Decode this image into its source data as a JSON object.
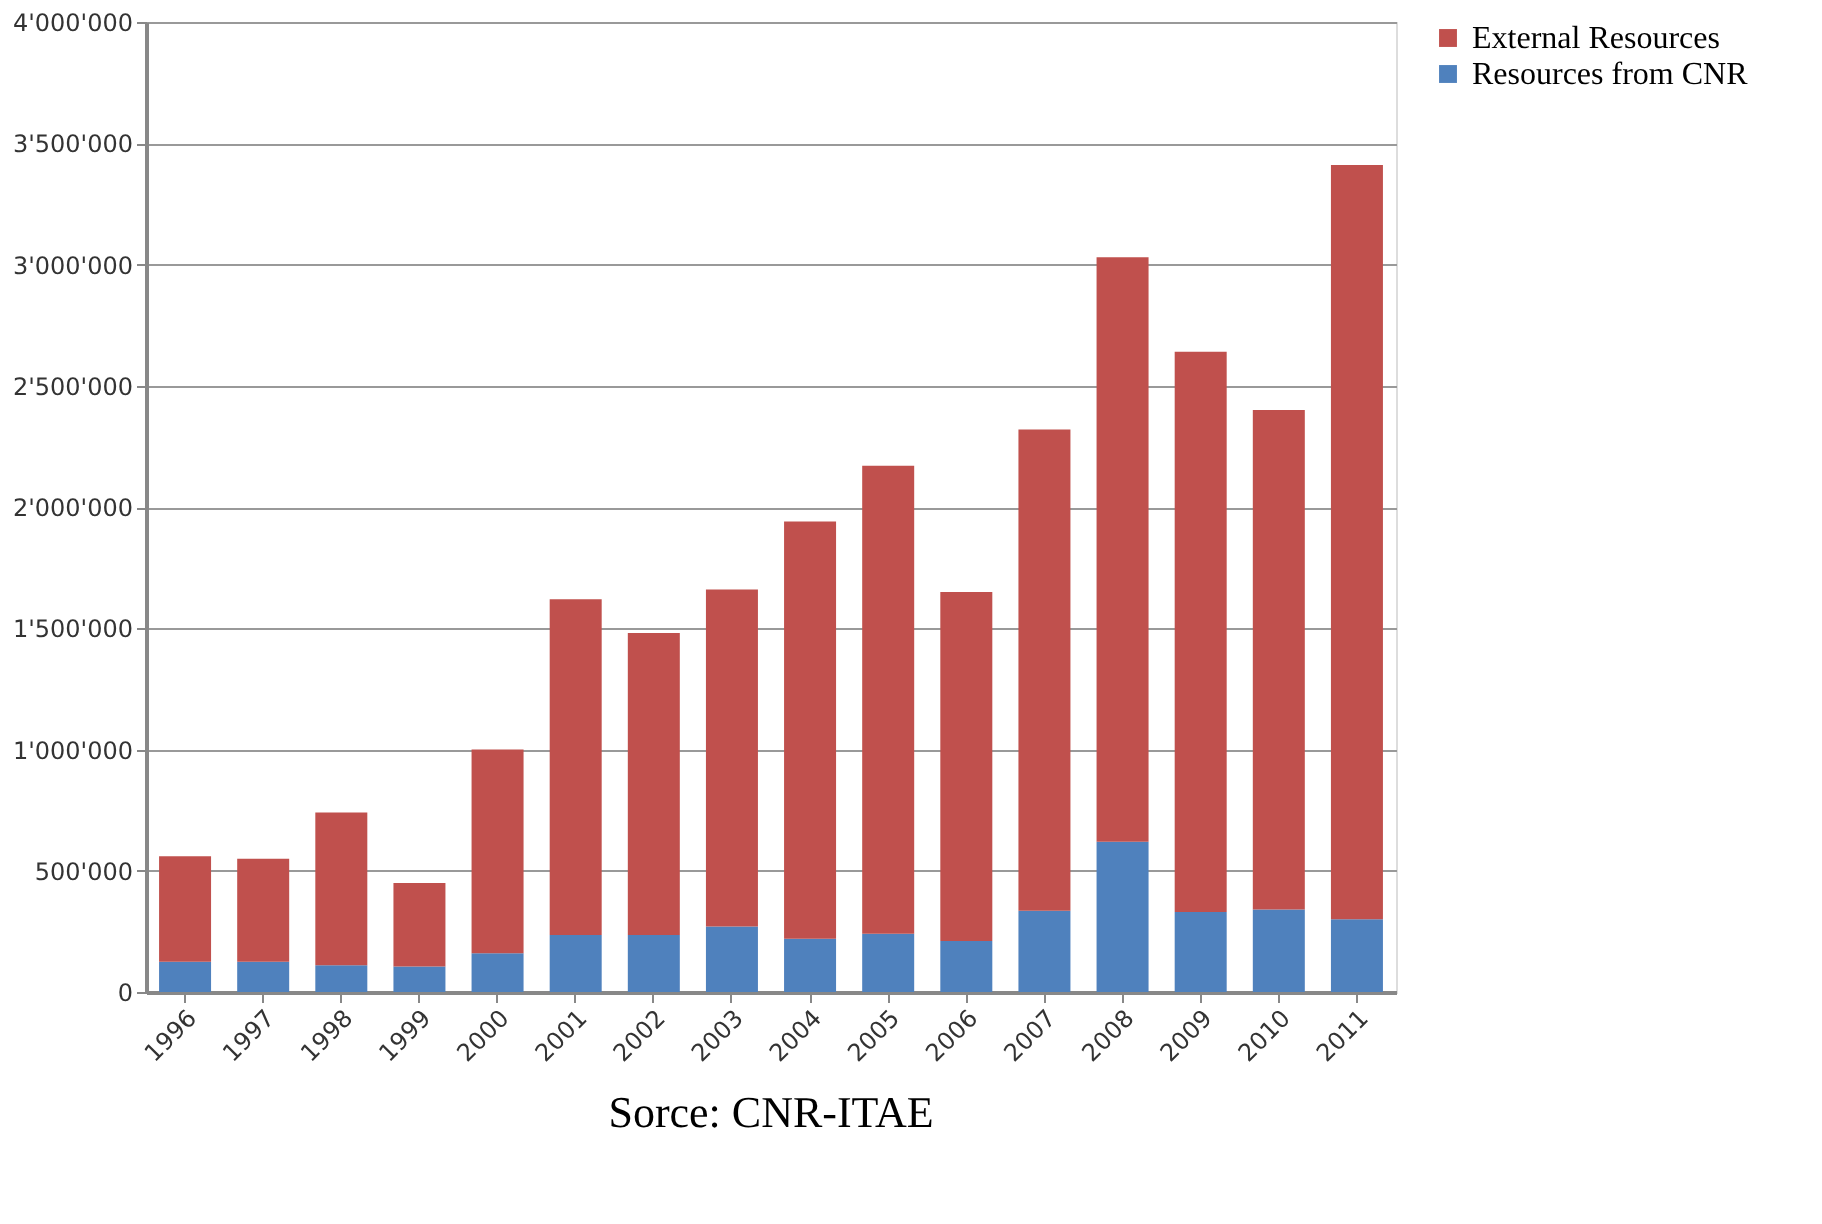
{
  "chart_data": {
    "type": "bar",
    "stacked": true,
    "categories": [
      "1996",
      "1997",
      "1998",
      "1999",
      "2000",
      "2001",
      "2002",
      "2003",
      "2004",
      "2005",
      "2006",
      "2007",
      "2008",
      "2009",
      "2010",
      "2011"
    ],
    "series": [
      {
        "name": "Resources from CNR",
        "color": "#4f81bd",
        "values": [
          125000,
          125000,
          110000,
          105000,
          160000,
          235000,
          235000,
          270000,
          220000,
          240000,
          210000,
          335000,
          620000,
          330000,
          340000,
          300000
        ]
      },
      {
        "name": "External  Resources",
        "color": "#c0504d",
        "values": [
          435000,
          425000,
          630000,
          345000,
          840000,
          1385000,
          1245000,
          1390000,
          1720000,
          1930000,
          1440000,
          1985000,
          2410000,
          2310000,
          2060000,
          3110000
        ]
      }
    ],
    "ylim": [
      0,
      4000000
    ],
    "yticks": [
      {
        "value": 0,
        "label": "0"
      },
      {
        "value": 500000,
        "label": "500'000"
      },
      {
        "value": 1000000,
        "label": "1'000'000"
      },
      {
        "value": 1500000,
        "label": "1'500'000"
      },
      {
        "value": 2000000,
        "label": "2'000'000"
      },
      {
        "value": 2500000,
        "label": "2'500'000"
      },
      {
        "value": 3000000,
        "label": "3'000'000"
      },
      {
        "value": 3500000,
        "label": "3'500'000"
      },
      {
        "value": 4000000,
        "label": "4'000'000"
      }
    ],
    "grid": "y",
    "legend": "right",
    "annotations": [
      "Sorce: CNR-ITAE"
    ]
  }
}
